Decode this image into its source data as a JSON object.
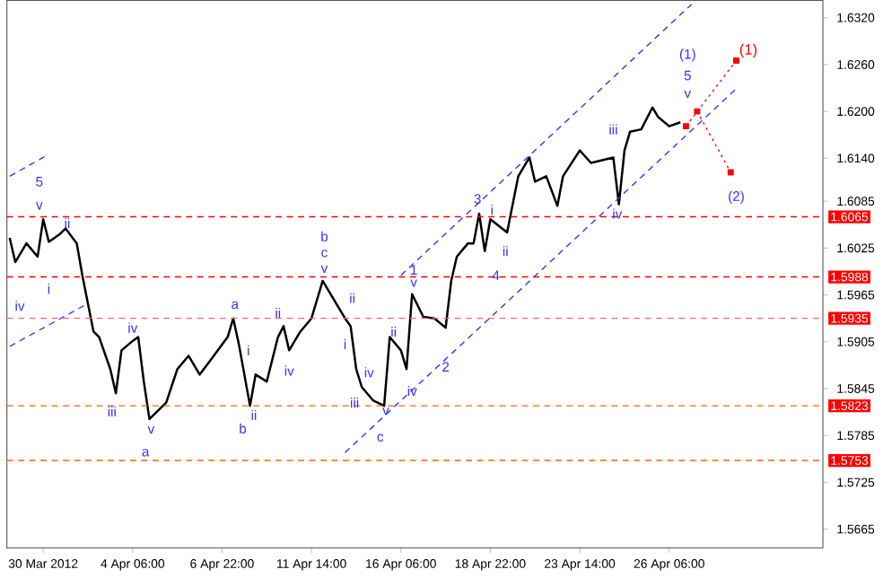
{
  "chart_data": {
    "type": "line",
    "legend": false,
    "grid": false,
    "ylim": [
      1.5641,
      1.6342
    ],
    "categories": [
      null,
      null,
      null,
      null,
      null,
      null,
      "30 Mar 2012",
      null,
      null,
      null,
      null,
      null,
      null,
      null,
      null,
      null,
      null,
      null,
      null,
      null,
      null,
      null,
      "4 Apr 06:00",
      null,
      null,
      null,
      null,
      null,
      null,
      null,
      null,
      null,
      null,
      null,
      null,
      null,
      null,
      null,
      "6 Apr 22:00",
      null,
      null,
      null,
      null,
      null,
      null,
      null,
      null,
      null,
      null,
      null,
      null,
      null,
      null,
      null,
      "11 Apr 14:00",
      null,
      null,
      null,
      null,
      null,
      null,
      null,
      null,
      null,
      null,
      null,
      null,
      null,
      null,
      null,
      "16 Apr 06:00",
      null,
      null,
      null,
      null,
      null,
      null,
      null,
      null,
      null,
      null,
      null,
      null,
      null,
      null,
      null,
      "18 Apr 22:00",
      null,
      null,
      null,
      null,
      null,
      null,
      null,
      null,
      null,
      null,
      null,
      null,
      null,
      null,
      null,
      "23 Apr 14:00",
      null,
      null,
      null,
      null,
      null,
      null,
      null,
      null,
      null,
      null,
      null,
      null,
      null,
      null,
      null,
      "26 Apr 06:00",
      null,
      null,
      null,
      null,
      null,
      null,
      null,
      null,
      null,
      null,
      null,
      null,
      null,
      null,
      null,
      null,
      null,
      null,
      null,
      null,
      null,
      null,
      null,
      null,
      null,
      null,
      null
    ],
    "yticks": [
      {
        "value": 1.632,
        "label": "1.6320"
      },
      {
        "value": 1.626,
        "label": "1.6260"
      },
      {
        "value": 1.62,
        "label": "1.6200"
      },
      {
        "value": 1.614,
        "label": "1.6140"
      },
      {
        "value": 1.6085,
        "label": "1.6085"
      },
      {
        "value": 1.6025,
        "label": "1.6025"
      },
      {
        "value": 1.5965,
        "label": "1.5965"
      },
      {
        "value": 1.5905,
        "label": "1.5905"
      },
      {
        "value": 1.5845,
        "label": "1.5845"
      },
      {
        "value": 1.5785,
        "label": "1.5785"
      },
      {
        "value": 1.5725,
        "label": "1.5725"
      },
      {
        "value": 1.5665,
        "label": "1.5665"
      }
    ],
    "series": [
      {
        "color": "#000000",
        "line_style": "solid",
        "values": [
          1.6038,
          1.6007,
          null,
          1.6031,
          null,
          1.6014,
          1.6062,
          1.6033,
          null,
          1.6043,
          1.605,
          null,
          1.6031,
          1.599,
          1.5954,
          1.5918,
          1.5911,
          null,
          1.587,
          1.5839,
          1.5894,
          null,
          1.5906,
          1.5911,
          1.5854,
          1.5806,
          null,
          null,
          1.5827,
          null,
          1.587,
          null,
          1.5887,
          null,
          1.5863,
          null,
          1.5882,
          null,
          null,
          1.5911,
          1.5935,
          1.5902,
          null,
          1.5823,
          1.5863,
          null,
          1.5854,
          null,
          1.5911,
          1.5925,
          1.5894,
          null,
          1.5918,
          null,
          1.5935,
          null,
          1.5983,
          null,
          1.5959,
          null,
          1.5935,
          1.5925,
          1.587,
          1.5847,
          null,
          1.583,
          null,
          1.5823,
          1.5911,
          null,
          1.5894,
          1.587,
          1.5966,
          null,
          1.5937,
          null,
          1.5935,
          null,
          1.5923,
          1.5983,
          1.6014,
          null,
          1.6031,
          1.6031,
          1.6069,
          1.6021,
          1.6062,
          null,
          null,
          1.6045,
          null,
          1.6117,
          null,
          1.6141,
          1.611,
          null,
          1.6117,
          null,
          1.6079,
          1.6117,
          null,
          null,
          1.615,
          null,
          1.6134,
          null,
          null,
          null,
          1.6141,
          1.6081,
          1.615,
          1.6174,
          null,
          1.6177,
          null,
          1.6205,
          1.6193,
          null,
          1.6181,
          null,
          1.6186,
          null,
          null,
          null,
          null,
          null,
          null,
          null,
          null,
          null,
          null,
          null,
          null,
          null,
          null,
          null,
          null,
          null,
          null,
          null,
          null,
          null,
          null,
          null,
          null,
          null
        ]
      },
      {
        "color": "#3333ff",
        "line_style": "dashed",
        "values": [
          null,
          null,
          null,
          null,
          null,
          null,
          null,
          null,
          null,
          null,
          null,
          null,
          null,
          null,
          null,
          null,
          null,
          null,
          null,
          null,
          null,
          null,
          null,
          null,
          null,
          null,
          null,
          null,
          null,
          null,
          null,
          null,
          null,
          null,
          null,
          null,
          null,
          null,
          null,
          null,
          null,
          null,
          null,
          null,
          null,
          null,
          null,
          null,
          null,
          null,
          null,
          null,
          null,
          null,
          null,
          null,
          null,
          null,
          null,
          null,
          null,
          null,
          null,
          null,
          null,
          null,
          null,
          null,
          null,
          null,
          1.599,
          null,
          null,
          null,
          null,
          null,
          null,
          null,
          null,
          null,
          null,
          null,
          null,
          null,
          null,
          null,
          null,
          null,
          null,
          null,
          null,
          null,
          null,
          null,
          null,
          null,
          null,
          null,
          null,
          null,
          null,
          null,
          null,
          null,
          null,
          null,
          null,
          null,
          null,
          null,
          null,
          null,
          null,
          null,
          null,
          null,
          null,
          null,
          null,
          null,
          null,
          null,
          1.6337,
          null,
          null,
          null,
          null,
          null,
          null,
          null,
          null,
          null,
          null,
          null,
          null,
          null,
          null,
          null,
          null,
          null,
          null,
          null,
          null,
          null,
          null,
          null
        ]
      },
      {
        "color": "#3333ff",
        "line_style": "dashed",
        "values": [
          null,
          null,
          null,
          null,
          null,
          null,
          null,
          null,
          null,
          null,
          null,
          null,
          null,
          null,
          null,
          null,
          null,
          null,
          null,
          null,
          null,
          null,
          null,
          null,
          null,
          null,
          null,
          null,
          null,
          null,
          null,
          null,
          null,
          null,
          null,
          null,
          null,
          null,
          null,
          null,
          null,
          null,
          null,
          null,
          null,
          null,
          null,
          null,
          null,
          null,
          null,
          null,
          null,
          null,
          null,
          null,
          null,
          null,
          null,
          null,
          1.5763,
          null,
          null,
          null,
          null,
          null,
          null,
          null,
          null,
          null,
          null,
          null,
          null,
          null,
          null,
          null,
          null,
          null,
          null,
          null,
          null,
          null,
          null,
          null,
          null,
          null,
          null,
          null,
          null,
          null,
          null,
          null,
          null,
          null,
          null,
          null,
          null,
          null,
          null,
          null,
          null,
          null,
          null,
          null,
          null,
          null,
          null,
          null,
          null,
          null,
          null,
          null,
          null,
          null,
          null,
          null,
          null,
          null,
          null,
          null,
          null,
          null,
          null,
          null,
          null,
          null,
          null,
          null,
          null,
          null,
          1.6229,
          null,
          null,
          null,
          null,
          null,
          null,
          null,
          null,
          null,
          null,
          null,
          null,
          null,
          null,
          null
        ]
      },
      {
        "color": "#3333ff",
        "line_style": "dashed",
        "values": [
          1.6117,
          null,
          null,
          null,
          null,
          null,
          null,
          1.6145,
          null,
          null,
          null,
          null,
          null,
          null,
          null,
          null,
          null,
          null,
          null,
          null,
          null,
          null,
          null,
          null,
          null,
          null,
          null,
          null,
          null,
          null,
          null,
          null,
          null,
          null,
          null,
          null,
          null,
          null,
          null,
          null,
          null,
          null,
          null,
          null,
          null,
          null,
          null,
          null,
          null,
          null,
          null,
          null,
          null,
          null,
          null,
          null,
          null,
          null,
          null,
          null,
          null,
          null,
          null,
          null,
          null,
          null,
          null,
          null,
          null,
          null,
          null,
          null,
          null,
          null,
          null,
          null,
          null,
          null,
          null,
          null,
          null,
          null,
          null,
          null,
          null,
          null,
          null,
          null,
          null,
          null,
          null,
          null,
          null,
          null,
          null,
          null,
          null,
          null,
          null,
          null,
          null,
          null,
          null,
          null,
          null,
          null,
          null,
          null,
          null,
          null,
          null,
          null,
          null,
          null,
          null,
          null,
          null,
          null,
          null,
          null,
          null,
          null,
          null,
          null,
          null,
          null,
          null,
          null,
          null,
          null,
          null,
          null,
          null,
          null,
          null,
          null,
          null,
          null,
          null,
          null,
          null,
          null,
          null,
          null,
          null,
          null
        ]
      },
      {
        "color": "#3333ff",
        "line_style": "dashed",
        "values": [
          1.5899,
          null,
          null,
          null,
          null,
          null,
          null,
          null,
          null,
          null,
          null,
          null,
          null,
          null,
          1.5954,
          null,
          null,
          null,
          null,
          null,
          null,
          null,
          null,
          null,
          null,
          null,
          null,
          null,
          null,
          null,
          null,
          null,
          null,
          null,
          null,
          null,
          null,
          null,
          null,
          null,
          null,
          null,
          null,
          null,
          null,
          null,
          null,
          null,
          null,
          null,
          null,
          null,
          null,
          null,
          null,
          null,
          null,
          null,
          null,
          null,
          null,
          null,
          null,
          null,
          null,
          null,
          null,
          null,
          null,
          null,
          null,
          null,
          null,
          null,
          null,
          null,
          null,
          null,
          null,
          null,
          null,
          null,
          null,
          null,
          null,
          null,
          null,
          null,
          null,
          null,
          null,
          null,
          null,
          null,
          null,
          null,
          null,
          null,
          null,
          null,
          null,
          null,
          null,
          null,
          null,
          null,
          null,
          null,
          null,
          null,
          null,
          null,
          null,
          null,
          null,
          null,
          null,
          null,
          null,
          null,
          null,
          null,
          null,
          null,
          null,
          null,
          null,
          null,
          null,
          null,
          null,
          null,
          null,
          null,
          null,
          null,
          null,
          null,
          null,
          null,
          null,
          null,
          null,
          null,
          null,
          null
        ]
      },
      {
        "name": "(1)",
        "color": "#ff0000",
        "line_style": "dotted",
        "marker": "square",
        "values": [
          null,
          null,
          null,
          null,
          null,
          null,
          null,
          null,
          null,
          null,
          null,
          null,
          null,
          null,
          null,
          null,
          null,
          null,
          null,
          null,
          null,
          null,
          null,
          null,
          null,
          null,
          null,
          null,
          null,
          null,
          null,
          null,
          null,
          null,
          null,
          null,
          null,
          null,
          null,
          null,
          null,
          null,
          null,
          null,
          null,
          null,
          null,
          null,
          null,
          null,
          null,
          null,
          null,
          null,
          null,
          null,
          null,
          null,
          null,
          null,
          null,
          null,
          null,
          null,
          null,
          null,
          null,
          null,
          null,
          null,
          null,
          null,
          null,
          null,
          null,
          null,
          null,
          null,
          null,
          null,
          null,
          null,
          null,
          null,
          null,
          null,
          null,
          null,
          null,
          null,
          null,
          null,
          null,
          null,
          null,
          null,
          null,
          null,
          null,
          null,
          null,
          null,
          null,
          null,
          null,
          null,
          null,
          null,
          null,
          null,
          null,
          null,
          null,
          null,
          null,
          null,
          null,
          null,
          null,
          null,
          null,
          1.6181,
          null,
          null,
          null,
          null,
          null,
          null,
          null,
          null,
          1.6265,
          null,
          null,
          null,
          null,
          null,
          null,
          null,
          null,
          null,
          null,
          null,
          null,
          null,
          null,
          null
        ]
      },
      {
        "color": "#ff0000",
        "line_style": "dotted",
        "marker": "square",
        "values": [
          null,
          null,
          null,
          null,
          null,
          null,
          null,
          null,
          null,
          null,
          null,
          null,
          null,
          null,
          null,
          null,
          null,
          null,
          null,
          null,
          null,
          null,
          null,
          null,
          null,
          null,
          null,
          null,
          null,
          null,
          null,
          null,
          null,
          null,
          null,
          null,
          null,
          null,
          null,
          null,
          null,
          null,
          null,
          null,
          null,
          null,
          null,
          null,
          null,
          null,
          null,
          null,
          null,
          null,
          null,
          null,
          null,
          null,
          null,
          null,
          null,
          null,
          null,
          null,
          null,
          null,
          null,
          null,
          null,
          null,
          null,
          null,
          null,
          null,
          null,
          null,
          null,
          null,
          null,
          null,
          null,
          null,
          null,
          null,
          null,
          null,
          null,
          null,
          null,
          null,
          null,
          null,
          null,
          null,
          null,
          null,
          null,
          null,
          null,
          null,
          null,
          null,
          null,
          null,
          null,
          null,
          null,
          null,
          null,
          null,
          null,
          null,
          null,
          null,
          null,
          null,
          null,
          null,
          null,
          null,
          null,
          null,
          null,
          1.62,
          null,
          null,
          null,
          null,
          null,
          1.6122,
          null,
          null,
          null,
          null,
          null,
          null,
          null,
          null,
          null,
          null,
          null,
          null,
          null,
          null,
          null,
          null
        ]
      }
    ],
    "ref_lines": [
      {
        "axis": "y",
        "value": 1.6065,
        "label": "1.6065",
        "color": "#ff0000",
        "line_style": "dashed"
      },
      {
        "axis": "y",
        "value": 1.5988,
        "label": "1.5988",
        "color": "#ff0000",
        "line_style": "dashed"
      },
      {
        "axis": "y",
        "value": 1.5935,
        "label": "1.5935",
        "color": "#ee6688",
        "line_style": "dashed"
      },
      {
        "axis": "y",
        "value": 1.5823,
        "label": "1.5823",
        "color": "#ff6600",
        "line_style": "dashed"
      },
      {
        "axis": "y",
        "value": 1.5753,
        "label": "1.5753",
        "color": "#ff6600",
        "line_style": "dashed"
      }
    ],
    "annotations": [
      "5",
      "v",
      "ii",
      "i",
      "iv",
      "iii",
      "iv",
      "v",
      "a",
      "a",
      "i",
      "ii",
      "b",
      "ii",
      "iv",
      "b",
      "c",
      "v",
      "ii",
      "i",
      "iii",
      "iv",
      "ii",
      "v",
      "c",
      "1",
      "v",
      "iv",
      "2",
      "3",
      "i",
      "ii",
      "4",
      "iii",
      "iv",
      "(1)",
      "5",
      "v",
      "(2)"
    ]
  }
}
